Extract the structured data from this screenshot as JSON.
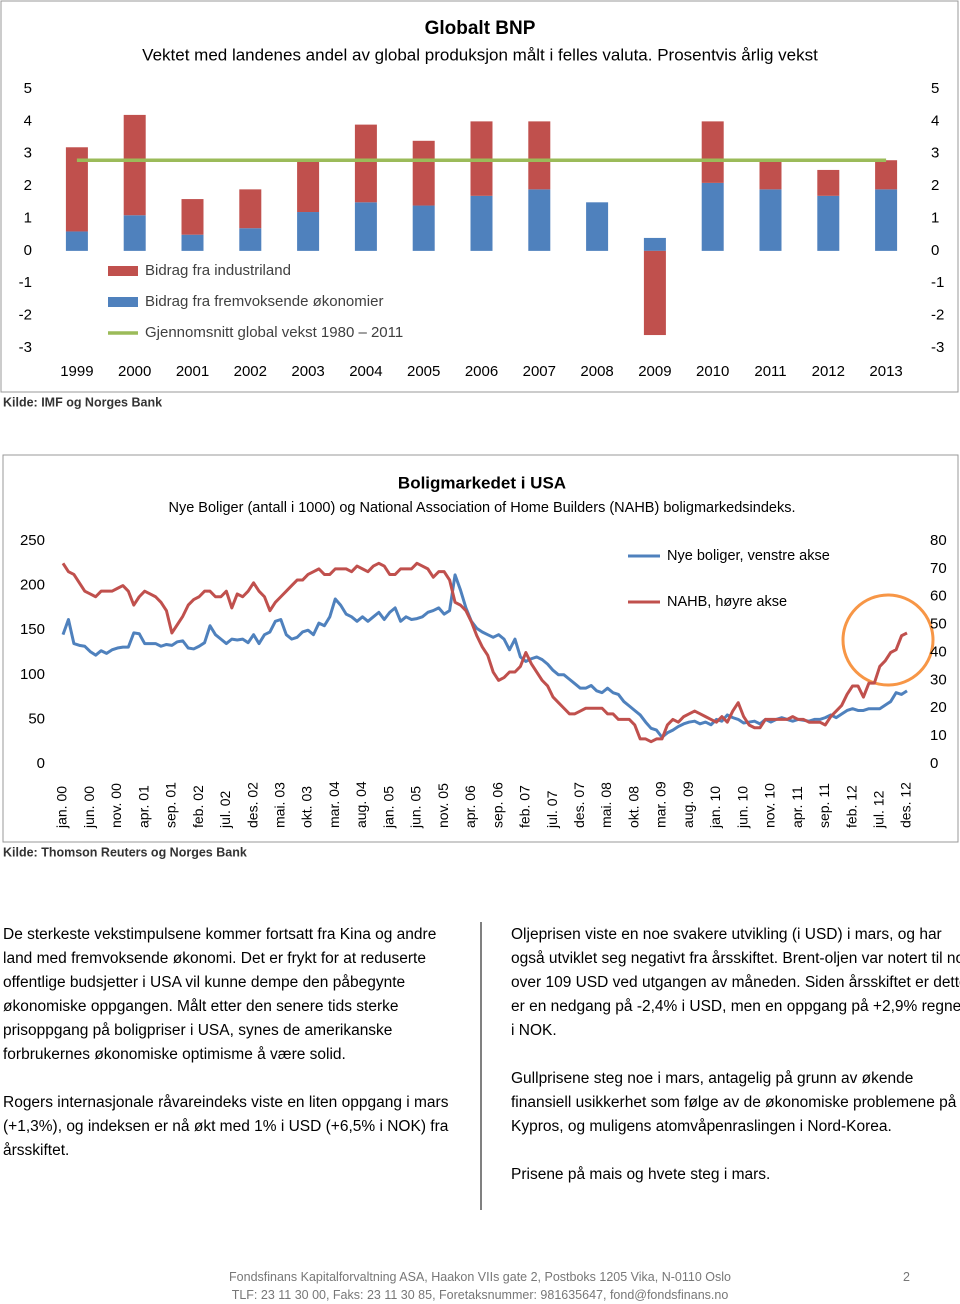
{
  "chart_data": [
    {
      "type": "bar",
      "title": "Globalt BNP",
      "subtitle": "Vektet med landenes andel av global produksjon målt i felles valuta. Prosentvis årlig vekst",
      "categories": [
        "1999",
        "2000",
        "2001",
        "2002",
        "2003",
        "2004",
        "2005",
        "2006",
        "2007",
        "2008",
        "2009",
        "2010",
        "2011",
        "2012",
        "2013"
      ],
      "series": [
        {
          "name": "Bidrag fra industriland",
          "color": "#c0504d",
          "values": [
            2.6,
            3.1,
            1.1,
            1.2,
            1.6,
            2.4,
            2.0,
            2.3,
            2.1,
            0,
            -2.6,
            1.9,
            0.9,
            0.8,
            0.9
          ]
        },
        {
          "name": "Bidrag fra fremvoksende økonomier",
          "color": "#4f81bd",
          "values": [
            0.6,
            1.1,
            0.5,
            0.7,
            1.2,
            1.5,
            1.4,
            1.7,
            1.9,
            1.5,
            0.4,
            2.1,
            1.9,
            1.7,
            1.9
          ]
        },
        {
          "name": "Gjennomsnitt global vekst 1980 – 2011",
          "color": "#9bbb59",
          "type": "line",
          "values": [
            2.8,
            2.8,
            2.8,
            2.8,
            2.8,
            2.8,
            2.8,
            2.8,
            2.8,
            2.8,
            2.8,
            2.8,
            2.8,
            2.8,
            2.8
          ]
        }
      ],
      "ylim": [
        -3,
        5
      ],
      "yticks": [
        -3,
        -2,
        -1,
        0,
        1,
        2,
        3,
        4,
        5
      ],
      "y2lim": [
        -3,
        5
      ],
      "y2ticks": [
        -3,
        -2,
        -1,
        0,
        1,
        2,
        3,
        4,
        5
      ],
      "source": "Kilde: IMF og Norges Bank"
    },
    {
      "type": "line",
      "title": "Boligmarkedet i USA",
      "subtitle": "Nye Boliger (antall i 1000) og National Association of Home Builders (NAHB) boligmarkedsindeks.",
      "categories": [
        "jan. 00",
        null,
        null,
        null,
        null,
        "jun. 00",
        null,
        null,
        null,
        null,
        "nov. 00",
        null,
        null,
        null,
        null,
        "apr. 01",
        null,
        null,
        null,
        null,
        "sep. 01",
        null,
        null,
        null,
        null,
        "feb. 02",
        null,
        null,
        null,
        null,
        "jul. 02",
        null,
        null,
        null,
        null,
        "des. 02",
        null,
        null,
        null,
        null,
        "mai. 03",
        null,
        null,
        null,
        null,
        "okt. 03",
        null,
        null,
        null,
        null,
        "mar. 04",
        null,
        null,
        null,
        null,
        "aug. 04",
        null,
        null,
        null,
        null,
        "jan. 05",
        null,
        null,
        null,
        null,
        "jun. 05",
        null,
        null,
        null,
        null,
        "nov. 05",
        null,
        null,
        null,
        null,
        "apr. 06",
        null,
        null,
        null,
        null,
        "sep. 06",
        null,
        null,
        null,
        null,
        "feb. 07",
        null,
        null,
        null,
        null,
        "jul. 07",
        null,
        null,
        null,
        null,
        "des. 07",
        null,
        null,
        null,
        null,
        "mai. 08",
        null,
        null,
        null,
        null,
        "okt. 08",
        null,
        null,
        null,
        null,
        "mar. 09",
        null,
        null,
        null,
        null,
        "aug. 09",
        null,
        null,
        null,
        null,
        "jan. 10",
        null,
        null,
        null,
        null,
        "jun. 10",
        null,
        null,
        null,
        null,
        "nov. 10",
        null,
        null,
        null,
        null,
        "apr. 11",
        null,
        null,
        null,
        null,
        "sep. 11",
        null,
        null,
        null,
        null,
        "feb. 12",
        null,
        null,
        null,
        null,
        "jul. 12",
        null,
        null,
        null,
        null,
        "des. 12"
      ],
      "series": [
        {
          "name": "Nye boliger, venstre akse",
          "color": "#4f81bd",
          "values": [
            145,
            162,
            135,
            133,
            132,
            126,
            122,
            127,
            124,
            128,
            130,
            131,
            131,
            147,
            146,
            135,
            135,
            135,
            132,
            134,
            133,
            137,
            138,
            130,
            129,
            132,
            136,
            155,
            145,
            140,
            135,
            140,
            139,
            140,
            136,
            145,
            135,
            145,
            148,
            160,
            162,
            145,
            140,
            142,
            148,
            150,
            145,
            158,
            155,
            165,
            185,
            178,
            168,
            165,
            160,
            165,
            160,
            165,
            170,
            162,
            170,
            175,
            160,
            165,
            162,
            163,
            165,
            170,
            172,
            175,
            168,
            172,
            212,
            195,
            175,
            160,
            152,
            148,
            145,
            142,
            145,
            140,
            128,
            140,
            120,
            115,
            118,
            120,
            117,
            112,
            105,
            100,
            100,
            95,
            90,
            85,
            85,
            88,
            82,
            80,
            85,
            80,
            78,
            70,
            65,
            60,
            55,
            47,
            40,
            38,
            30,
            35,
            38,
            42,
            45,
            47,
            48,
            45,
            47,
            44,
            50,
            48,
            55,
            52,
            50,
            46,
            47,
            48,
            45,
            50,
            47,
            50,
            52,
            50,
            48,
            50,
            49,
            48,
            50,
            50,
            52,
            55,
            52,
            56,
            60,
            62,
            60,
            60,
            62,
            62,
            62,
            66,
            70,
            80,
            78,
            82
          ]
        },
        {
          "name": "NAHB, høyre akse",
          "color": "#c0504d",
          "axis": "y2",
          "values": [
            72,
            69,
            68,
            65,
            62,
            61,
            60,
            62,
            62,
            62,
            63,
            64,
            62,
            57,
            60,
            62,
            61,
            60,
            58,
            55,
            47,
            50,
            53,
            57,
            59,
            60,
            62,
            62,
            60,
            60,
            62,
            56,
            61,
            60,
            62,
            65,
            62,
            60,
            55,
            58,
            60,
            62,
            64,
            66,
            66,
            68,
            69,
            70,
            68,
            68,
            70,
            70,
            70,
            69,
            71,
            70,
            69,
            71,
            72,
            71,
            68,
            68,
            70,
            70,
            70,
            72,
            71,
            70,
            67,
            69,
            69,
            66,
            58,
            57,
            55,
            51,
            46,
            42,
            39,
            33,
            30,
            31,
            33,
            33,
            35,
            40,
            36,
            33,
            30,
            28,
            24,
            22,
            20,
            18,
            18,
            19,
            20,
            20,
            20,
            20,
            18,
            18,
            16,
            16,
            16,
            14,
            9,
            9,
            8,
            9,
            9,
            14,
            16,
            15,
            17,
            18,
            19,
            18,
            17,
            16,
            15,
            17,
            15,
            19,
            22,
            17,
            14,
            13,
            13,
            16,
            16,
            16,
            16,
            16,
            17,
            16,
            16,
            15,
            15,
            15,
            14,
            17,
            19,
            21,
            25,
            28,
            28,
            24,
            29,
            29,
            35,
            37,
            40,
            41,
            46,
            47
          ]
        }
      ],
      "ylim": [
        0,
        250
      ],
      "yticks": [
        0,
        50,
        100,
        150,
        200,
        250
      ],
      "y2lim": [
        0,
        80
      ],
      "y2ticks": [
        0,
        10,
        20,
        30,
        40,
        50,
        60,
        70,
        80
      ],
      "source": "Kilde: Thomson Reuters og Norges Bank"
    }
  ],
  "body": {
    "left": [
      "De sterkeste vekstimpulsene kommer fortsatt fra Kina og andre land med fremvoksende økonomi. Det er frykt for at reduserte offentlige budsjetter i USA vil kunne dempe den påbegynte økonomiske oppgangen. Målt etter den senere tids sterke prisoppgang på boligpriser i USA, synes de amerikanske forbrukernes økonomiske optimisme å være solid.",
      "Rogers internasjonale råvareindeks viste en liten oppgang i mars (+1,3%), og indeksen er nå økt med 1% i USD (+6,5% i NOK) fra årsskiftet."
    ],
    "right": [
      "Oljeprisen viste en noe svakere utvikling (i USD) i mars, og har også utviklet seg negativt fra årsskiftet. Brent-oljen var notert til noe over 109 USD ved utgangen av måneden. Siden årsskiftet er dette er en nedgang på -2,4% i USD, men en oppgang på +2,9% regnet i NOK.",
      "Gullprisene steg noe i mars, antagelig på grunn av økende finansiell usikkerhet som følge av de økonomiske problemene på Kypros, og muligens atomvåpenraslingen i Nord-Korea.",
      "Prisene på mais og hvete steg i mars."
    ]
  },
  "footer": {
    "lines": [
      "Fondsfinans Kapitalforvaltning ASA, Haakon VIIs gate 2, Postboks 1205 Vika, N-0110 Oslo",
      "TLF: 23 11 30 00, Faks: 23 11 30 85, Foretaksnummer: 981635647, fond@fondsfinans.no"
    ],
    "page": "2"
  }
}
